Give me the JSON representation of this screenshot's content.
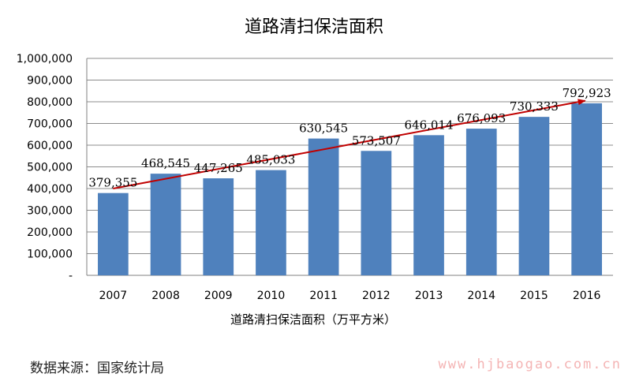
{
  "chart_data": {
    "type": "bar",
    "title": "道路清扫保洁面积",
    "xlabel": "道路清扫保洁面积（万平方米）",
    "ylabel": "",
    "categories": [
      "2007",
      "2008",
      "2009",
      "2010",
      "2011",
      "2012",
      "2013",
      "2014",
      "2015",
      "2016"
    ],
    "values": [
      379355,
      468545,
      447265,
      485033,
      630545,
      573507,
      646014,
      676093,
      730333,
      792923
    ],
    "data_labels": [
      "379,355",
      "468,545",
      "447,265",
      "485,033",
      "630,545",
      "573,507",
      "646,014",
      "676,093",
      "730,333",
      "792,923"
    ],
    "ylim": [
      0,
      1000000
    ],
    "y_ticks": [
      0,
      100000,
      200000,
      300000,
      400000,
      500000,
      600000,
      700000,
      800000,
      900000,
      1000000
    ],
    "y_tick_labels": [
      "-",
      "100,000",
      "200,000",
      "300,000",
      "400,000",
      "500,000",
      "600,000",
      "700,000",
      "800,000",
      "900,000",
      "1,000,000"
    ],
    "trend": {
      "from": 400000,
      "to": 805000
    },
    "grid": true,
    "legend": "none",
    "colors": {
      "bar": "#4f81bd",
      "trend": "#c00000",
      "grid": "#8c8c8c",
      "axis": "#808080"
    }
  },
  "source_text": "数据来源：国家统计局",
  "watermark_text": "www.hjbaogao.com.cn"
}
